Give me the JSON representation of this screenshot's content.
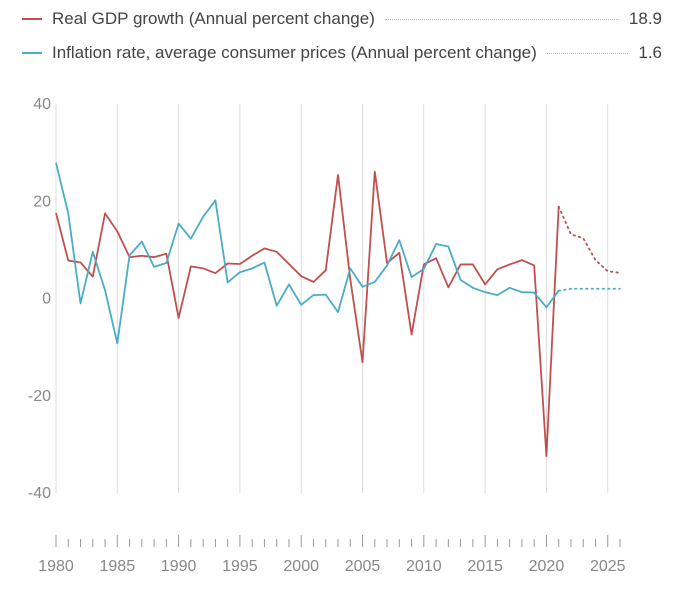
{
  "legend": [
    {
      "label": "Real GDP growth (Annual percent change)",
      "value": "18.9",
      "color": "#c0504d"
    },
    {
      "label": "Inflation rate, average consumer prices (Annual percent change)",
      "value": "1.6",
      "color": "#4bacc6"
    }
  ],
  "chart_data": {
    "type": "line",
    "xlim": [
      1980,
      2026
    ],
    "ylim": [
      -40,
      40
    ],
    "y_ticks": [
      "40",
      "20",
      "0",
      "-20",
      "-40"
    ],
    "y_tick_values": [
      40,
      20,
      0,
      -20,
      -40
    ],
    "x_ticks": [
      "1980",
      "1985",
      "1990",
      "1995",
      "2000",
      "2005",
      "2010",
      "2015",
      "2020",
      "2025"
    ],
    "x_tick_values": [
      1980,
      1985,
      1990,
      1995,
      2000,
      2005,
      2010,
      2015,
      2020,
      2025
    ],
    "grid": "vertical",
    "projection_start": 2021,
    "series": [
      {
        "name": "Real GDP growth (Annual percent change)",
        "color": "#c0504d",
        "x": [
          1980,
          1981,
          1982,
          1983,
          1984,
          1985,
          1986,
          1987,
          1988,
          1989,
          1990,
          1991,
          1992,
          1993,
          1994,
          1995,
          1996,
          1997,
          1998,
          1999,
          2000,
          2001,
          2002,
          2003,
          2004,
          2005,
          2006,
          2007,
          2008,
          2009,
          2010,
          2011,
          2012,
          2013,
          2014,
          2015,
          2016,
          2017,
          2018,
          2019,
          2020,
          2021,
          2022,
          2023,
          2024,
          2025,
          2026
        ],
        "values": [
          17.6,
          7.8,
          7.4,
          4.5,
          17.5,
          13.8,
          8.5,
          8.8,
          8.5,
          9.2,
          -4.0,
          6.6,
          6.2,
          5.2,
          7.2,
          7.1,
          8.8,
          10.3,
          9.6,
          7.1,
          4.6,
          3.4,
          5.8,
          25.4,
          4.0,
          -13.1,
          26.1,
          7.3,
          9.4,
          -7.4,
          7.0,
          8.3,
          2.3,
          7.0,
          7.0,
          2.9,
          6.0,
          7.0,
          7.9,
          6.8,
          -32.4,
          18.9,
          13.2,
          12.4,
          7.9,
          5.6,
          5.3
        ]
      },
      {
        "name": "Inflation rate, average consumer prices (Annual percent change)",
        "color": "#4bacc6",
        "x": [
          1980,
          1981,
          1982,
          1983,
          1984,
          1985,
          1986,
          1987,
          1988,
          1989,
          1990,
          1991,
          1992,
          1993,
          1994,
          1995,
          1996,
          1997,
          1998,
          1999,
          2000,
          2001,
          2002,
          2003,
          2004,
          2005,
          2006,
          2007,
          2008,
          2009,
          2010,
          2011,
          2012,
          2013,
          2014,
          2015,
          2016,
          2017,
          2018,
          2019,
          2020,
          2021,
          2022,
          2023,
          2024,
          2025,
          2026
        ],
        "values": [
          27.9,
          17.5,
          -1.0,
          9.6,
          1.7,
          -9.2,
          8.9,
          11.7,
          6.5,
          7.3,
          15.4,
          12.3,
          16.8,
          20.2,
          3.3,
          5.4,
          6.2,
          7.4,
          -1.5,
          2.9,
          -1.3,
          0.7,
          0.8,
          -2.8,
          6.2,
          2.4,
          3.4,
          6.8,
          12.0,
          4.4,
          6.1,
          11.2,
          10.7,
          3.8,
          2.2,
          1.3,
          0.7,
          2.2,
          1.3,
          1.2,
          -1.8,
          1.6,
          2.0,
          2.0,
          2.0,
          2.0,
          2.0
        ]
      }
    ]
  }
}
